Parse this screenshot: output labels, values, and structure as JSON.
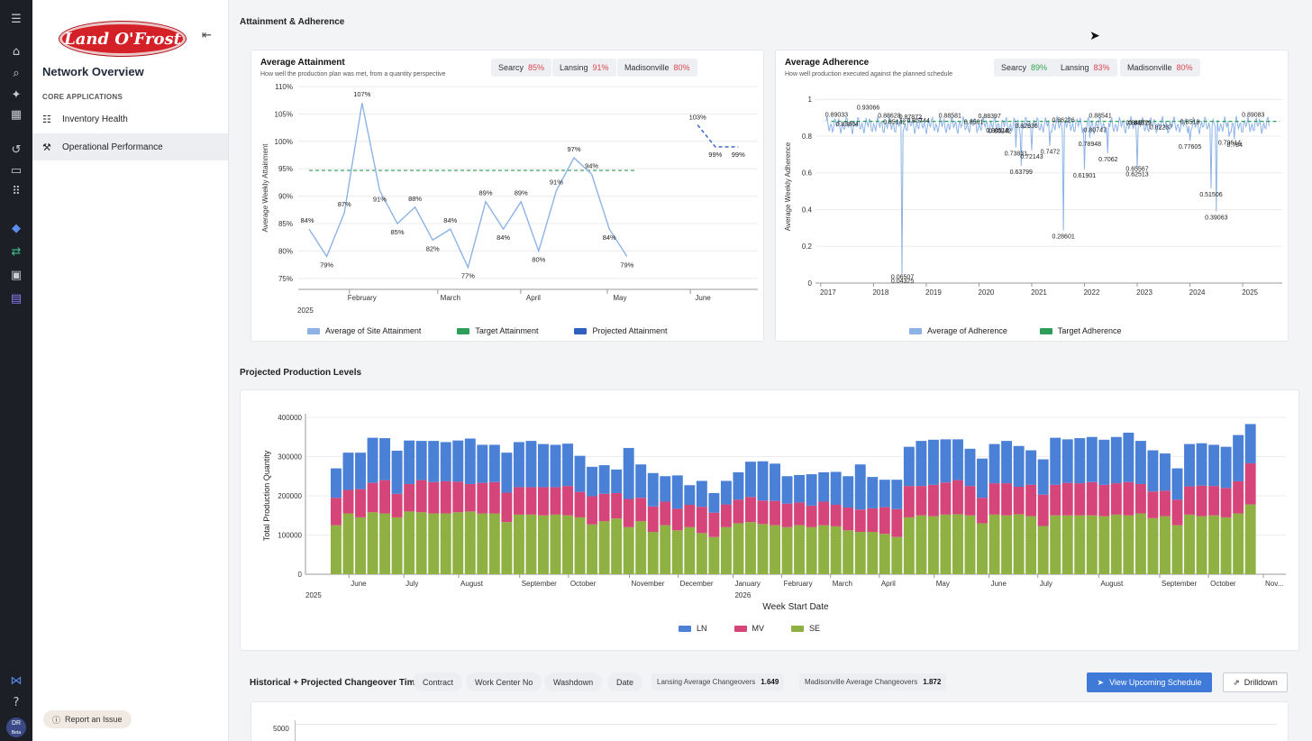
{
  "sidebar": {
    "logo_text": "Land O'Frost",
    "title": "Network Overview",
    "section_label": "CORE APPLICATIONS",
    "items": [
      {
        "label": "Inventory Health"
      },
      {
        "label": "Operational Performance"
      }
    ],
    "report_label": "Report an Issue",
    "avatar_initials": "DR",
    "avatar_badge": "Beta"
  },
  "sections": {
    "attainment_adherence": "Attainment & Adherence",
    "projected_production": "Projected Production Levels"
  },
  "attainment": {
    "title": "Average Attainment",
    "subtitle": "How well the production plan was met, from a quantity perspective",
    "sites": [
      {
        "name": "Searcy",
        "value": "85%"
      },
      {
        "name": "Lansing",
        "value": "91%"
      },
      {
        "name": "Madisonville",
        "value": "80%"
      }
    ]
  },
  "adherence": {
    "title": "Average Adherence",
    "subtitle": "How well production executed against the planned schedule",
    "sites": [
      {
        "name": "Searcy",
        "value": "89%"
      },
      {
        "name": "Lansing",
        "value": "83%"
      },
      {
        "name": "Madisonville",
        "value": "80%"
      }
    ]
  },
  "changeover": {
    "title": "Historical + Projected Changeover Time",
    "filters": [
      "Contract",
      "Work Center No",
      "Washdown",
      "Date"
    ],
    "lansing_label": "Lansing Average Changeovers",
    "lansing_value": "1.649",
    "madisonville_label": "Madisonville Average Changeovers",
    "madisonville_value": "1.872",
    "view_button": "View Upcoming Schedule",
    "drilldown_button": "Drilldown",
    "y_tick_visible": "5000"
  },
  "chart_data": [
    {
      "type": "line",
      "title": "Average Attainment",
      "ylabel": "Average Weekly Attainment",
      "xlabel": "",
      "ylim": [
        73,
        110
      ],
      "yticks": [
        75,
        80,
        85,
        90,
        95,
        100,
        105,
        110
      ],
      "ytick_labels": [
        "75%",
        "80%",
        "85%",
        "90%",
        "95%",
        "100%",
        "105%",
        "110%"
      ],
      "xticks": [
        "February",
        "March",
        "April",
        "May",
        "June"
      ],
      "x_year_label": "2025",
      "target_value": 94.7,
      "series": [
        {
          "name": "Average of Site Attainment",
          "color": "#8db3e6",
          "x": [
            0,
            1,
            2,
            3,
            4,
            5,
            6,
            7,
            8,
            9,
            10,
            11,
            12,
            13,
            14,
            15,
            16,
            17,
            18
          ],
          "values": [
            84,
            79,
            87,
            107,
            91,
            85,
            88,
            82,
            84,
            77,
            89,
            84,
            89,
            80,
            91,
            97,
            94,
            84,
            79
          ],
          "labels": [
            "84%",
            "79%",
            "87%",
            "107%",
            "91%",
            "85%",
            "88%",
            "82%",
            "84%",
            "77%",
            "89%",
            "84%",
            "89%",
            "80%",
            "91%",
            "97%",
            "94%",
            "84%",
            "79%"
          ]
        },
        {
          "name": "Target Attainment",
          "color": "#2e9d5a"
        },
        {
          "name": "Projected Attainment",
          "color": "#2f5fbf",
          "x": [
            22,
            23,
            24.3
          ],
          "values": [
            103,
            99,
            99
          ],
          "labels": [
            "103%",
            "99%",
            "99%"
          ]
        }
      ]
    },
    {
      "type": "line",
      "title": "Average Adherence",
      "ylabel": "Average Weekly Adherence",
      "ylim": [
        0,
        1.05
      ],
      "yticks": [
        0,
        0.2,
        0.4,
        0.6,
        0.8,
        1
      ],
      "ytick_labels": [
        "0",
        "0.2",
        "0.4",
        "0.6",
        "0.8",
        "1"
      ],
      "xticks": [
        "2017",
        "2018",
        "2019",
        "2020",
        "2021",
        "2022",
        "2023",
        "2024",
        "2025"
      ],
      "target_value": 0.88,
      "series": [
        {
          "name": "Average of Adherence",
          "color": "#8db3e6"
        },
        {
          "name": "Target Adherence",
          "color": "#2e9d5a"
        }
      ],
      "annotations": [
        {
          "x": 2017.3,
          "y": 0.89033,
          "label": "0.89033"
        },
        {
          "x": 2017.5,
          "y": 0.83864,
          "label": "0.83864"
        },
        {
          "x": 2017.9,
          "y": 0.93066,
          "label": "0.93066"
        },
        {
          "x": 2018.3,
          "y": 0.88628,
          "label": "0.88628"
        },
        {
          "x": 2018.4,
          "y": 0.85142,
          "label": "0.85142"
        },
        {
          "x": 2018.7,
          "y": 0.87872,
          "label": "0.87872"
        },
        {
          "x": 2018.85,
          "y": 0.85744,
          "label": "0.85744"
        },
        {
          "x": 2018.55,
          "y": 0.06507,
          "label": "0.06507"
        },
        {
          "x": 2018.55,
          "y": 0.04325,
          "label": "0.04325"
        },
        {
          "x": 2019.45,
          "y": 0.88581,
          "label": "0.88581"
        },
        {
          "x": 2019.9,
          "y": 0.8501,
          "label": "0.8501"
        },
        {
          "x": 2020.2,
          "y": 0.88397,
          "label": "0.88397"
        },
        {
          "x": 2020.35,
          "y": 0.80518,
          "label": "0.80518"
        },
        {
          "x": 2020.4,
          "y": 0.80242,
          "label": "0.80242"
        },
        {
          "x": 2020.9,
          "y": 0.82936,
          "label": "0.82936"
        },
        {
          "x": 2020.7,
          "y": 0.73831,
          "label": "0.73831"
        },
        {
          "x": 2021.0,
          "y": 0.72143,
          "label": "0.72143"
        },
        {
          "x": 2020.8,
          "y": 0.63799,
          "label": "0.63799"
        },
        {
          "x": 2021.6,
          "y": 0.86226,
          "label": "0.86226"
        },
        {
          "x": 2021.35,
          "y": 0.7472,
          "label": "0.7472"
        },
        {
          "x": 2021.6,
          "y": 0.28601,
          "label": "0.28601"
        },
        {
          "x": 2022.3,
          "y": 0.88541,
          "label": "0.88541"
        },
        {
          "x": 2022.2,
          "y": 0.80747,
          "label": "0.80747"
        },
        {
          "x": 2022.1,
          "y": 0.78948,
          "label": "0.78948"
        },
        {
          "x": 2022.45,
          "y": 0.7062,
          "label": "0.7062"
        },
        {
          "x": 2022.0,
          "y": 0.61901,
          "label": "0.61901"
        },
        {
          "x": 2023.0,
          "y": 0.84572,
          "label": "0.84572"
        },
        {
          "x": 2023.05,
          "y": 0.84519,
          "label": "0.84519"
        },
        {
          "x": 2023.45,
          "y": 0.82287,
          "label": "0.82287"
        },
        {
          "x": 2023.0,
          "y": 0.65567,
          "label": "0.65567"
        },
        {
          "x": 2023.0,
          "y": 0.62513,
          "label": "0.62513"
        },
        {
          "x": 2024.0,
          "y": 0.8518,
          "label": "0.8518"
        },
        {
          "x": 2024.0,
          "y": 0.77605,
          "label": "0.77605"
        },
        {
          "x": 2024.4,
          "y": 0.51506,
          "label": "0.51506"
        },
        {
          "x": 2024.5,
          "y": 0.39063,
          "label": "0.39063"
        },
        {
          "x": 2025.2,
          "y": 0.89083,
          "label": "0.89083"
        },
        {
          "x": 2024.75,
          "y": 0.79614,
          "label": "0.79614"
        },
        {
          "x": 2024.85,
          "y": 0.784,
          "label": "0.784"
        }
      ]
    },
    {
      "type": "bar",
      "stacked": true,
      "title": "Projected Production Levels",
      "xlabel": "Week Start Date",
      "ylabel": "Total Production Quantity",
      "ylim": [
        0,
        400000
      ],
      "yticks": [
        0,
        100000,
        200000,
        300000,
        400000
      ],
      "ytick_labels": [
        "0",
        "100000",
        "200000",
        "300000",
        "400000"
      ],
      "xticks": [
        {
          "i": 1.5,
          "label": "June",
          "sub": "2025"
        },
        {
          "i": 6,
          "label": "July"
        },
        {
          "i": 10.5,
          "label": "August"
        },
        {
          "i": 15.5,
          "label": "September"
        },
        {
          "i": 19.5,
          "label": "October"
        },
        {
          "i": 24.5,
          "label": "November"
        },
        {
          "i": 28.5,
          "label": "December"
        },
        {
          "i": 33,
          "label": "January",
          "sub": "2026"
        },
        {
          "i": 37,
          "label": "February"
        },
        {
          "i": 41,
          "label": "March"
        },
        {
          "i": 45,
          "label": "April"
        },
        {
          "i": 49.5,
          "label": "May"
        },
        {
          "i": 54,
          "label": "June"
        },
        {
          "i": 58,
          "label": "July"
        },
        {
          "i": 63,
          "label": "August"
        },
        {
          "i": 68,
          "label": "September"
        },
        {
          "i": 72,
          "label": "October"
        },
        {
          "i": 76.5,
          "label": "Nov..."
        }
      ],
      "series": [
        {
          "name": "SE",
          "color": "#8fb043",
          "values": [
            125000,
            155000,
            145000,
            158000,
            155000,
            145000,
            160000,
            158000,
            155000,
            155000,
            158000,
            160000,
            155000,
            155000,
            133000,
            152000,
            152000,
            150000,
            152000,
            150000,
            145000,
            127000,
            135000,
            142000,
            120000,
            135000,
            108000,
            125000,
            112000,
            120000,
            105000,
            95000,
            120000,
            130000,
            133000,
            128000,
            125000,
            120000,
            125000,
            120000,
            125000,
            122000,
            112000,
            108000,
            108000,
            103000,
            95000,
            145000,
            150000,
            148000,
            152000,
            153000,
            150000,
            130000,
            152000,
            150000,
            153000,
            148000,
            123000,
            150000,
            150000,
            150000,
            150000,
            148000,
            152000,
            150000,
            155000,
            143000,
            148000,
            125000,
            152000,
            148000,
            150000,
            145000,
            155000,
            178000
          ]
        },
        {
          "name": "MV",
          "color": "#d6457a",
          "values": [
            70000,
            60000,
            72000,
            75000,
            85000,
            60000,
            70000,
            82000,
            80000,
            82000,
            78000,
            70000,
            78000,
            80000,
            75000,
            70000,
            70000,
            72000,
            70000,
            75000,
            65000,
            72000,
            70000,
            65000,
            72000,
            60000,
            65000,
            60000,
            55000,
            57000,
            67000,
            62000,
            58000,
            60000,
            64000,
            60000,
            62000,
            60000,
            58000,
            55000,
            60000,
            55000,
            58000,
            57000,
            60000,
            68000,
            71000,
            80000,
            75000,
            80000,
            82000,
            87000,
            75000,
            65000,
            80000,
            82000,
            70000,
            80000,
            80000,
            78000,
            83000,
            82000,
            85000,
            80000,
            80000,
            85000,
            75000,
            68000,
            65000,
            65000,
            72000,
            78000,
            75000,
            75000,
            82000,
            105000
          ]
        },
        {
          "name": "LN",
          "color": "#4a80d6",
          "values": [
            75000,
            95000,
            93000,
            115000,
            107000,
            110000,
            111000,
            100000,
            105000,
            100000,
            105000,
            116000,
            97000,
            95000,
            102000,
            115000,
            118000,
            110000,
            108000,
            108000,
            92000,
            75000,
            73000,
            60000,
            130000,
            85000,
            85000,
            65000,
            85000,
            50000,
            66000,
            50000,
            60000,
            70000,
            90000,
            100000,
            95000,
            70000,
            70000,
            80000,
            75000,
            84000,
            80000,
            115000,
            80000,
            70000,
            75000,
            100000,
            115000,
            115000,
            110000,
            104000,
            95000,
            100000,
            100000,
            108000,
            104000,
            88000,
            90000,
            120000,
            111000,
            115000,
            115000,
            115000,
            118000,
            126000,
            110000,
            105000,
            95000,
            80000,
            108000,
            108000,
            105000,
            105000,
            118000,
            100000
          ]
        }
      ]
    }
  ]
}
